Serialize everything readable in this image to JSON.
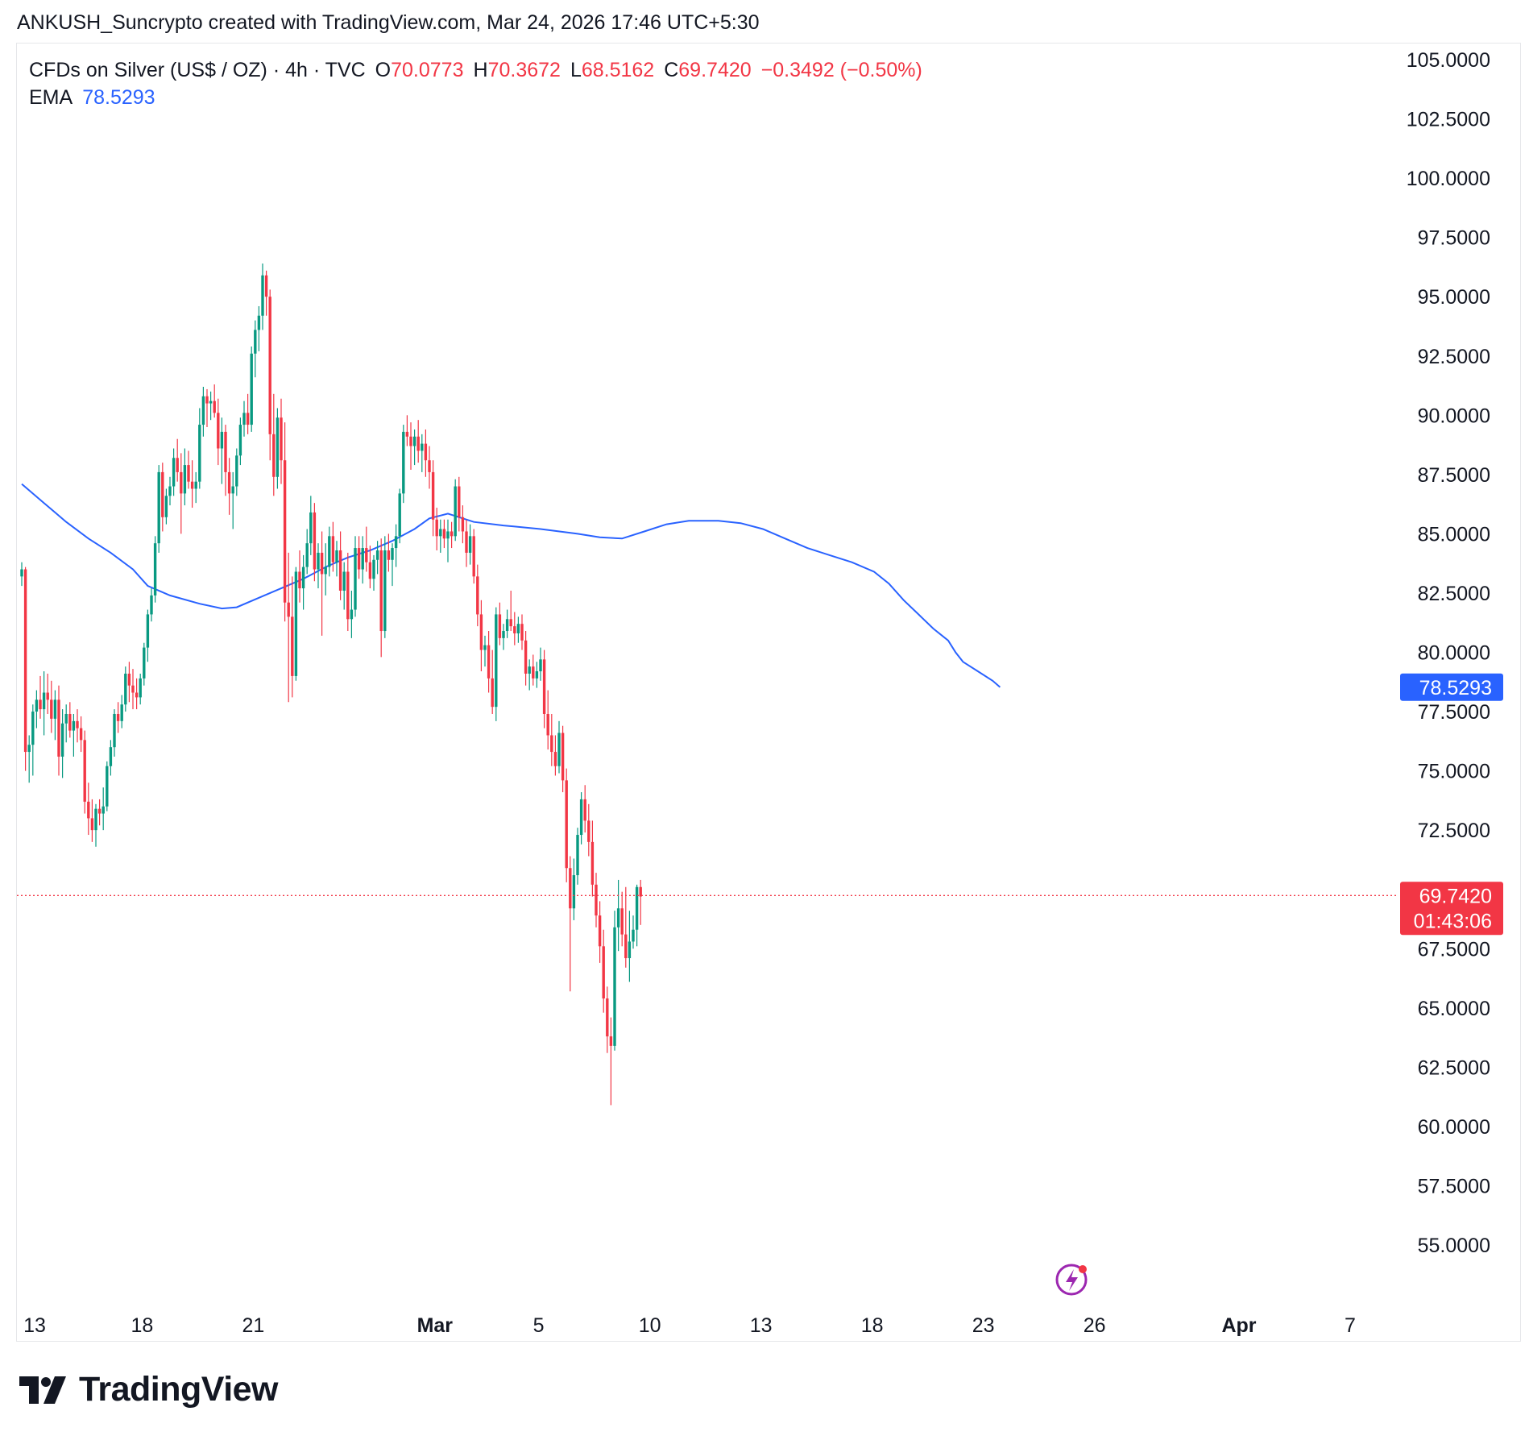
{
  "attribution": "ANKUSH_Suncrypto created with TradingView.com, Mar 24, 2026 17:46 UTC+5:30",
  "legend": {
    "symbol": "CFDs on Silver (US$ / OZ) · 4h · TVC",
    "open_label": "O",
    "open": "70.0773",
    "high_label": "H",
    "high": "70.3672",
    "low_label": "L",
    "low": "68.5162",
    "close_label": "C",
    "close": "69.7420",
    "change": "−0.3492 (−0.50%)",
    "ema_label": "EMA",
    "ema_value": "78.5293"
  },
  "price_badges": {
    "ema": "78.5293",
    "last_price": "69.7420",
    "countdown": "01:43:06"
  },
  "brand": "TradingView",
  "colors": {
    "up": "#089981",
    "down": "#f23645",
    "ema": "#2962ff",
    "text": "#131722",
    "last_line": "#f23645",
    "badge_ema": "#2962ff",
    "badge_last": "#f23645",
    "lightning": "#9c27b0"
  },
  "icons": {
    "logo": "tradingview-logo-icon",
    "alert": "lightning-icon"
  },
  "chart_data": {
    "type": "candlestick",
    "interval": "4h",
    "ylim": [
      53.5,
      106
    ],
    "y_ticks": [
      105,
      102.5,
      100,
      97.5,
      95,
      92.5,
      90,
      87.5,
      85,
      82.5,
      80,
      77.5,
      75,
      72.5,
      67.5,
      65,
      62.5,
      60,
      57.5,
      55
    ],
    "x_ticks": [
      {
        "label": "13",
        "bar": 0,
        "bold": false
      },
      {
        "label": "18",
        "bar": 29,
        "bold": false
      },
      {
        "label": "21",
        "bar": 59,
        "bold": false
      },
      {
        "label": "Mar",
        "bar": 108,
        "bold": true
      },
      {
        "label": "5",
        "bar": 136,
        "bold": false
      },
      {
        "label": "10",
        "bar": 166,
        "bold": false
      },
      {
        "label": "13",
        "bar": 196,
        "bold": false
      },
      {
        "label": "18",
        "bar": 226,
        "bold": false
      },
      {
        "label": "23",
        "bar": 256,
        "bold": false
      },
      {
        "label": "26",
        "bar": 286,
        "bold": false
      },
      {
        "label": "Apr",
        "bar": 325,
        "bold": true
      },
      {
        "label": "7",
        "bar": 355,
        "bold": false
      }
    ],
    "ema_last": 78.5293,
    "last_price": 69.742,
    "ohlc_series": {
      "name": "CFDs on Silver (US$ / OZ)",
      "bars": [
        [
          83.2,
          83.8,
          82.8,
          83.5
        ],
        [
          83.5,
          83.6,
          75.0,
          75.8
        ],
        [
          75.8,
          76.5,
          74.5,
          76.1
        ],
        [
          76.1,
          77.8,
          74.8,
          77.5
        ],
        [
          77.5,
          78.4,
          76.8,
          78.0
        ],
        [
          78.0,
          79.0,
          77.2,
          77.6
        ],
        [
          77.6,
          79.2,
          76.5,
          78.3
        ],
        [
          78.3,
          79.1,
          77.4,
          78.0
        ],
        [
          78.0,
          78.8,
          76.6,
          77.2
        ],
        [
          77.2,
          78.4,
          76.3,
          78.0
        ],
        [
          78.0,
          78.6,
          74.8,
          75.6
        ],
        [
          75.6,
          77.6,
          74.7,
          77.0
        ],
        [
          77.0,
          77.8,
          76.2,
          77.4
        ],
        [
          77.4,
          77.9,
          76.4,
          76.7
        ],
        [
          76.7,
          77.4,
          75.6,
          77.1
        ],
        [
          77.1,
          77.6,
          76.2,
          76.8
        ],
        [
          76.8,
          77.3,
          75.8,
          76.3
        ],
        [
          76.3,
          76.7,
          73.2,
          73.7
        ],
        [
          73.7,
          74.5,
          72.3,
          73.0
        ],
        [
          73.0,
          73.8,
          72.0,
          72.5
        ],
        [
          72.5,
          73.6,
          71.8,
          73.4
        ],
        [
          73.4,
          73.8,
          72.7,
          73.2
        ],
        [
          73.2,
          74.3,
          72.5,
          73.5
        ],
        [
          73.5,
          75.4,
          73.3,
          75.2
        ],
        [
          75.2,
          76.3,
          74.8,
          76.0
        ],
        [
          76.0,
          77.6,
          75.6,
          77.4
        ],
        [
          77.4,
          77.9,
          76.6,
          77.1
        ],
        [
          77.1,
          78.2,
          76.8,
          77.8
        ],
        [
          77.8,
          79.4,
          77.5,
          79.1
        ],
        [
          79.1,
          79.6,
          77.9,
          78.6
        ],
        [
          78.6,
          79.3,
          77.6,
          78.3
        ],
        [
          78.3,
          78.9,
          77.6,
          78.1
        ],
        [
          78.1,
          79.1,
          77.8,
          78.9
        ],
        [
          78.9,
          80.4,
          78.6,
          80.2
        ],
        [
          80.2,
          81.8,
          79.6,
          81.6
        ],
        [
          81.6,
          82.7,
          81.3,
          82.4
        ],
        [
          82.4,
          84.9,
          82.1,
          84.6
        ],
        [
          84.6,
          87.9,
          84.2,
          87.6
        ],
        [
          87.6,
          88.0,
          85.1,
          85.7
        ],
        [
          85.7,
          86.9,
          85.4,
          86.6
        ],
        [
          86.6,
          87.4,
          86.2,
          87.0
        ],
        [
          87.0,
          88.6,
          86.6,
          88.2
        ],
        [
          88.2,
          89.0,
          87.2,
          87.6
        ],
        [
          87.6,
          88.4,
          85.0,
          86.7
        ],
        [
          86.7,
          88.6,
          86.2,
          87.9
        ],
        [
          87.9,
          88.5,
          86.9,
          87.2
        ],
        [
          87.2,
          88.1,
          86.1,
          86.9
        ],
        [
          86.9,
          87.6,
          86.3,
          87.2
        ],
        [
          87.2,
          90.3,
          86.9,
          89.6
        ],
        [
          89.6,
          91.2,
          89.1,
          90.8
        ],
        [
          90.8,
          91.1,
          89.5,
          90.5
        ],
        [
          90.5,
          91.0,
          89.8,
          90.6
        ],
        [
          90.6,
          91.3,
          89.9,
          90.1
        ],
        [
          90.1,
          90.7,
          87.9,
          88.6
        ],
        [
          88.6,
          89.9,
          87.1,
          89.3
        ],
        [
          89.3,
          89.6,
          86.6,
          87.6
        ],
        [
          87.6,
          88.2,
          85.8,
          86.7
        ],
        [
          86.7,
          87.6,
          85.2,
          87.0
        ],
        [
          87.0,
          88.6,
          86.6,
          88.3
        ],
        [
          88.3,
          89.9,
          87.9,
          89.6
        ],
        [
          89.6,
          90.6,
          89.1,
          90.1
        ],
        [
          90.1,
          90.9,
          89.2,
          89.6
        ],
        [
          89.6,
          92.9,
          89.3,
          92.6
        ],
        [
          92.6,
          94.0,
          91.6,
          93.6
        ],
        [
          93.6,
          94.6,
          92.7,
          94.2
        ],
        [
          94.2,
          96.4,
          93.6,
          95.9
        ],
        [
          95.9,
          96.1,
          94.2,
          95.0
        ],
        [
          95.0,
          95.3,
          88.1,
          89.2
        ],
        [
          89.2,
          90.9,
          86.6,
          87.4
        ],
        [
          87.4,
          90.3,
          86.9,
          89.9
        ],
        [
          89.9,
          90.7,
          87.1,
          88.1
        ],
        [
          88.1,
          89.7,
          81.3,
          82.1
        ],
        [
          82.1,
          84.2,
          77.9,
          81.5
        ],
        [
          81.5,
          83.2,
          78.1,
          79.0
        ],
        [
          79.0,
          83.6,
          78.8,
          83.4
        ],
        [
          83.4,
          84.3,
          82.1,
          82.7
        ],
        [
          82.7,
          84.1,
          81.8,
          83.6
        ],
        [
          83.6,
          85.2,
          83.3,
          84.6
        ],
        [
          84.6,
          86.6,
          84.1,
          85.9
        ],
        [
          85.9,
          86.3,
          83.0,
          83.5
        ],
        [
          83.5,
          84.6,
          82.7,
          84.2
        ],
        [
          84.2,
          85.1,
          80.7,
          83.3
        ],
        [
          83.3,
          84.6,
          82.4,
          83.6
        ],
        [
          83.6,
          85.3,
          83.2,
          84.9
        ],
        [
          84.9,
          85.5,
          83.4,
          83.8
        ],
        [
          83.8,
          84.7,
          83.2,
          84.3
        ],
        [
          84.3,
          85.1,
          82.2,
          82.6
        ],
        [
          82.6,
          83.8,
          81.8,
          83.4
        ],
        [
          83.4,
          84.2,
          80.9,
          81.4
        ],
        [
          81.4,
          82.6,
          80.6,
          81.8
        ],
        [
          81.8,
          84.9,
          81.5,
          84.4
        ],
        [
          84.4,
          84.9,
          83.1,
          83.5
        ],
        [
          83.5,
          84.9,
          82.9,
          84.4
        ],
        [
          84.4,
          85.3,
          83.4,
          83.8
        ],
        [
          83.8,
          84.5,
          82.7,
          83.1
        ],
        [
          83.1,
          84.1,
          82.6,
          83.9
        ],
        [
          83.9,
          84.7,
          83.3,
          84.3
        ],
        [
          84.3,
          84.8,
          79.8,
          80.9
        ],
        [
          80.9,
          84.9,
          80.6,
          84.3
        ],
        [
          84.3,
          85.0,
          83.4,
          83.9
        ],
        [
          83.9,
          84.6,
          82.8,
          84.4
        ],
        [
          84.4,
          85.4,
          83.6,
          84.9
        ],
        [
          84.9,
          86.9,
          84.6,
          86.7
        ],
        [
          86.7,
          89.6,
          86.3,
          89.3
        ],
        [
          89.3,
          90.0,
          88.7,
          89.1
        ],
        [
          89.1,
          89.7,
          87.7,
          88.7
        ],
        [
          88.7,
          89.4,
          87.9,
          89.1
        ],
        [
          89.1,
          89.8,
          88.0,
          88.5
        ],
        [
          88.5,
          89.2,
          87.6,
          88.8
        ],
        [
          88.8,
          89.4,
          87.4,
          88.1
        ],
        [
          88.1,
          88.7,
          86.9,
          87.6
        ],
        [
          87.6,
          88.1,
          84.9,
          85.6
        ],
        [
          85.6,
          86.1,
          84.3,
          84.9
        ],
        [
          84.9,
          85.6,
          84.2,
          85.2
        ],
        [
          85.2,
          85.6,
          84.4,
          84.8
        ],
        [
          84.8,
          85.6,
          83.8,
          85.1
        ],
        [
          85.1,
          85.5,
          84.4,
          84.9
        ],
        [
          84.9,
          87.3,
          84.7,
          87.0
        ],
        [
          87.0,
          87.4,
          85.1,
          85.7
        ],
        [
          85.7,
          86.2,
          84.6,
          85.1
        ],
        [
          85.1,
          85.6,
          83.6,
          84.2
        ],
        [
          84.2,
          85.4,
          83.7,
          84.9
        ],
        [
          84.9,
          85.2,
          82.9,
          83.2
        ],
        [
          83.2,
          83.7,
          81.1,
          81.6
        ],
        [
          81.6,
          82.2,
          79.2,
          80.1
        ],
        [
          80.1,
          80.7,
          79.4,
          80.3
        ],
        [
          80.3,
          80.9,
          78.3,
          78.9
        ],
        [
          78.9,
          80.1,
          77.4,
          77.7
        ],
        [
          77.7,
          81.9,
          77.1,
          81.6
        ],
        [
          81.6,
          82.1,
          80.3,
          80.6
        ],
        [
          80.6,
          81.2,
          80.1,
          80.9
        ],
        [
          80.9,
          81.8,
          80.6,
          81.4
        ],
        [
          81.4,
          82.6,
          80.9,
          81.1
        ],
        [
          81.1,
          81.7,
          80.3,
          80.8
        ],
        [
          80.8,
          81.5,
          80.4,
          81.2
        ],
        [
          81.2,
          81.6,
          80.1,
          80.5
        ],
        [
          80.5,
          80.9,
          78.6,
          79.1
        ],
        [
          79.1,
          79.7,
          78.4,
          79.4
        ],
        [
          79.4,
          79.9,
          78.6,
          78.9
        ],
        [
          78.9,
          79.6,
          78.5,
          79.2
        ],
        [
          79.2,
          80.2,
          78.8,
          79.7
        ],
        [
          79.7,
          80.1,
          76.8,
          77.4
        ],
        [
          77.4,
          78.4,
          75.9,
          76.5
        ],
        [
          76.5,
          77.4,
          75.2,
          75.8
        ],
        [
          75.8,
          76.5,
          74.8,
          75.2
        ],
        [
          75.2,
          77.1,
          74.9,
          76.6
        ],
        [
          76.6,
          76.9,
          74.1,
          74.6
        ],
        [
          74.6,
          75.1,
          70.3,
          70.9
        ],
        [
          70.9,
          71.4,
          65.7,
          69.2
        ],
        [
          69.2,
          71.3,
          68.7,
          70.6
        ],
        [
          70.6,
          72.6,
          70.2,
          72.3
        ],
        [
          72.3,
          74.1,
          71.9,
          73.8
        ],
        [
          73.8,
          74.4,
          72.4,
          72.9
        ],
        [
          72.9,
          73.6,
          71.4,
          72.0
        ],
        [
          72.0,
          72.9,
          69.7,
          70.2
        ],
        [
          70.2,
          70.7,
          68.4,
          68.9
        ],
        [
          68.9,
          69.5,
          66.9,
          67.6
        ],
        [
          67.6,
          68.3,
          64.8,
          65.4
        ],
        [
          65.4,
          65.9,
          63.1,
          63.8
        ],
        [
          63.8,
          64.6,
          60.9,
          63.4
        ],
        [
          63.4,
          69.1,
          63.2,
          68.4
        ],
        [
          68.4,
          70.4,
          67.4,
          69.2
        ],
        [
          69.2,
          69.9,
          67.6,
          68.1
        ],
        [
          68.1,
          70.1,
          66.7,
          67.1
        ],
        [
          67.1,
          69.1,
          66.1,
          67.8
        ],
        [
          67.8,
          68.9,
          67.5,
          68.3
        ],
        [
          68.3,
          70.2,
          67.6,
          70.1
        ],
        [
          70.1,
          70.4,
          68.5,
          69.7
        ]
      ]
    },
    "ema_series": {
      "name": "EMA",
      "points": [
        [
          0,
          87.1
        ],
        [
          6,
          86.3
        ],
        [
          12,
          85.5
        ],
        [
          18,
          84.8
        ],
        [
          24,
          84.2
        ],
        [
          30,
          83.5
        ],
        [
          34,
          82.8
        ],
        [
          40,
          82.4
        ],
        [
          48,
          82.05
        ],
        [
          54,
          81.85
        ],
        [
          58,
          81.9
        ],
        [
          64,
          82.3
        ],
        [
          70,
          82.7
        ],
        [
          76,
          83.1
        ],
        [
          82,
          83.6
        ],
        [
          88,
          84.0
        ],
        [
          94,
          84.3
        ],
        [
          100,
          84.7
        ],
        [
          106,
          85.2
        ],
        [
          110,
          85.65
        ],
        [
          115,
          85.85
        ],
        [
          122,
          85.5
        ],
        [
          130,
          85.35
        ],
        [
          140,
          85.2
        ],
        [
          150,
          85.0
        ],
        [
          156,
          84.85
        ],
        [
          162,
          84.8
        ],
        [
          168,
          85.1
        ],
        [
          174,
          85.4
        ],
        [
          180,
          85.55
        ],
        [
          188,
          85.55
        ],
        [
          194,
          85.45
        ],
        [
          200,
          85.2
        ],
        [
          206,
          84.8
        ],
        [
          212,
          84.4
        ],
        [
          218,
          84.1
        ],
        [
          224,
          83.8
        ],
        [
          230,
          83.4
        ],
        [
          234,
          82.9
        ],
        [
          238,
          82.2
        ],
        [
          242,
          81.6
        ],
        [
          246,
          81.0
        ],
        [
          250,
          80.5
        ],
        [
          252,
          80.0
        ],
        [
          254,
          79.6
        ],
        [
          258,
          79.2
        ],
        [
          262,
          78.8
        ],
        [
          264,
          78.53
        ]
      ]
    }
  }
}
